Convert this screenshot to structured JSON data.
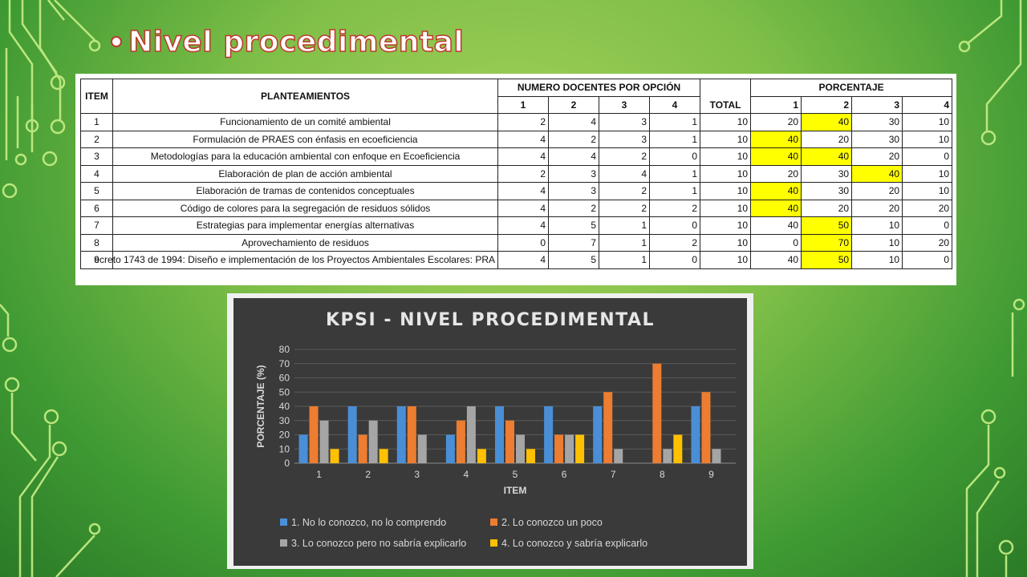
{
  "slide": {
    "title": "Nivel procedimental"
  },
  "table": {
    "headers": {
      "item": "ITEM",
      "planteamientos": "PLANTEAMIENTOS",
      "numero_docentes": "NUMERO DOCENTES POR OPCIÓN",
      "total": "TOTAL",
      "porcentaje": "PORCENTAJE",
      "options": [
        "1",
        "2",
        "3",
        "4"
      ]
    },
    "rows": [
      {
        "item": "1",
        "text": "Funcionamiento de un comité ambiental",
        "counts": [
          "2",
          "4",
          "3",
          "1"
        ],
        "total": "10",
        "pct": [
          "20",
          "40",
          "30",
          "10"
        ],
        "highlight": [
          1
        ]
      },
      {
        "item": "2",
        "text": "Formulación de PRAES con énfasis en ecoeficiencia",
        "counts": [
          "4",
          "2",
          "3",
          "1"
        ],
        "total": "10",
        "pct": [
          "40",
          "20",
          "30",
          "10"
        ],
        "highlight": [
          0
        ]
      },
      {
        "item": "3",
        "text": "Metodologías para la educación ambiental con enfoque en Ecoeficiencia",
        "counts": [
          "4",
          "4",
          "2",
          "0"
        ],
        "total": "10",
        "pct": [
          "40",
          "40",
          "20",
          "0"
        ],
        "highlight": [
          0,
          1
        ]
      },
      {
        "item": "4",
        "text": "Elaboración de plan de acción ambiental",
        "counts": [
          "2",
          "3",
          "4",
          "1"
        ],
        "total": "10",
        "pct": [
          "20",
          "30",
          "40",
          "10"
        ],
        "highlight": [
          2
        ]
      },
      {
        "item": "5",
        "text": "Elaboración de tramas de contenidos conceptuales",
        "counts": [
          "4",
          "3",
          "2",
          "1"
        ],
        "total": "10",
        "pct": [
          "40",
          "30",
          "20",
          "10"
        ],
        "highlight": [
          0
        ]
      },
      {
        "item": "6",
        "text": "Código de colores para la segregación de residuos sólidos",
        "counts": [
          "4",
          "2",
          "2",
          "2"
        ],
        "total": "10",
        "pct": [
          "40",
          "20",
          "20",
          "20"
        ],
        "highlight": [
          0
        ]
      },
      {
        "item": "7",
        "text": "Estrategias para implementar energías alternativas",
        "counts": [
          "4",
          "5",
          "1",
          "0"
        ],
        "total": "10",
        "pct": [
          "40",
          "50",
          "10",
          "0"
        ],
        "highlight": [
          1
        ]
      },
      {
        "item": "8",
        "text": "Aprovechamiento de residuos",
        "counts": [
          "0",
          "7",
          "1",
          "2"
        ],
        "total": "10",
        "pct": [
          "0",
          "70",
          "10",
          "20"
        ],
        "highlight": [
          1
        ]
      },
      {
        "item": "9",
        "text": "ecreto 1743 de 1994: Diseño e implementación de los Proyectos Ambientales Escolares: PRA",
        "counts": [
          "4",
          "5",
          "1",
          "0"
        ],
        "total": "10",
        "pct": [
          "40",
          "50",
          "10",
          "0"
        ],
        "highlight": [
          1
        ]
      }
    ],
    "highlight_color": "#ffff00"
  },
  "chart_data": {
    "type": "bar",
    "title": "KPSI - NIVEL PROCEDIMENTAL",
    "xlabel": "ITEM",
    "ylabel": "PORCENTAJE (%)",
    "ylim": [
      0,
      80
    ],
    "yticks": [
      0,
      10,
      20,
      30,
      40,
      50,
      60,
      70,
      80
    ],
    "categories": [
      "1",
      "2",
      "3",
      "4",
      "5",
      "6",
      "7",
      "8",
      "9"
    ],
    "grid": true,
    "legend_position": "bottom",
    "background": "#3a3a3a",
    "series": [
      {
        "name": "1. No lo conozco, no lo comprendo",
        "color": "#4a8fd6",
        "values": [
          20,
          40,
          40,
          20,
          40,
          40,
          40,
          0,
          40
        ]
      },
      {
        "name": "2. Lo conozco un poco",
        "color": "#ed7d31",
        "values": [
          40,
          20,
          40,
          30,
          30,
          20,
          50,
          70,
          50
        ]
      },
      {
        "name": "3. Lo conozco pero no sabría explicarlo",
        "color": "#a5a5a5",
        "values": [
          30,
          30,
          20,
          40,
          20,
          20,
          10,
          10,
          10
        ]
      },
      {
        "name": "4. Lo conozco y sabría explicarlo",
        "color": "#ffc000",
        "values": [
          10,
          10,
          0,
          10,
          10,
          20,
          0,
          20,
          0
        ]
      }
    ]
  }
}
